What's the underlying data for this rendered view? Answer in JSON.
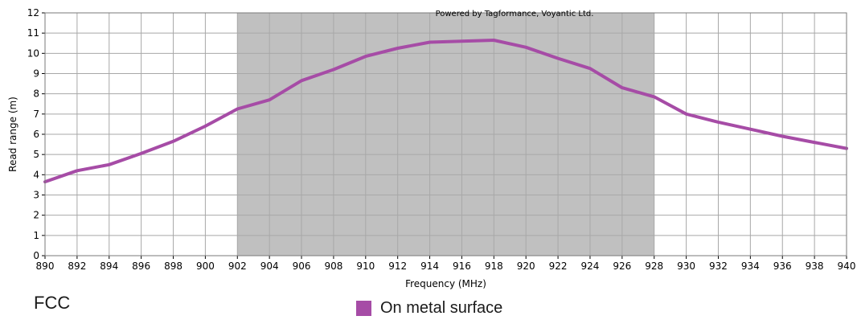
{
  "chart_data": {
    "type": "line",
    "title": "",
    "xlabel": "Frequency (MHz)",
    "ylabel": "Read range (m)",
    "xlim": [
      890,
      940
    ],
    "ylim": [
      0,
      12
    ],
    "x_ticks": [
      890,
      892,
      894,
      896,
      898,
      900,
      902,
      904,
      906,
      908,
      910,
      912,
      914,
      916,
      918,
      920,
      922,
      924,
      926,
      928,
      930,
      932,
      934,
      936,
      938,
      940
    ],
    "y_ticks": [
      0,
      1,
      2,
      3,
      4,
      5,
      6,
      7,
      8,
      9,
      10,
      11,
      12
    ],
    "grid": true,
    "highlight_band": {
      "x_start": 902,
      "x_end": 928,
      "color": "#c0c0c0"
    },
    "annotation": "Powered by Tagformance, Voyantic Ltd.",
    "series": [
      {
        "name": "On metal surface",
        "color": "#a64ca6",
        "x": [
          890,
          892,
          894,
          896,
          898,
          900,
          902,
          904,
          906,
          908,
          910,
          912,
          914,
          916,
          918,
          920,
          922,
          924,
          926,
          928,
          930,
          932,
          934,
          936,
          938,
          940
        ],
        "y": [
          3.65,
          4.2,
          4.5,
          5.05,
          5.65,
          6.4,
          7.25,
          7.7,
          8.65,
          9.2,
          9.85,
          10.25,
          10.55,
          10.6,
          10.65,
          10.3,
          9.75,
          9.25,
          8.3,
          7.85,
          7.0,
          6.6,
          6.25,
          5.9,
          5.6,
          5.3
        ]
      }
    ]
  },
  "caption": {
    "region": "FCC"
  },
  "legend": {
    "label": "On metal surface",
    "color": "#a64ca6"
  }
}
